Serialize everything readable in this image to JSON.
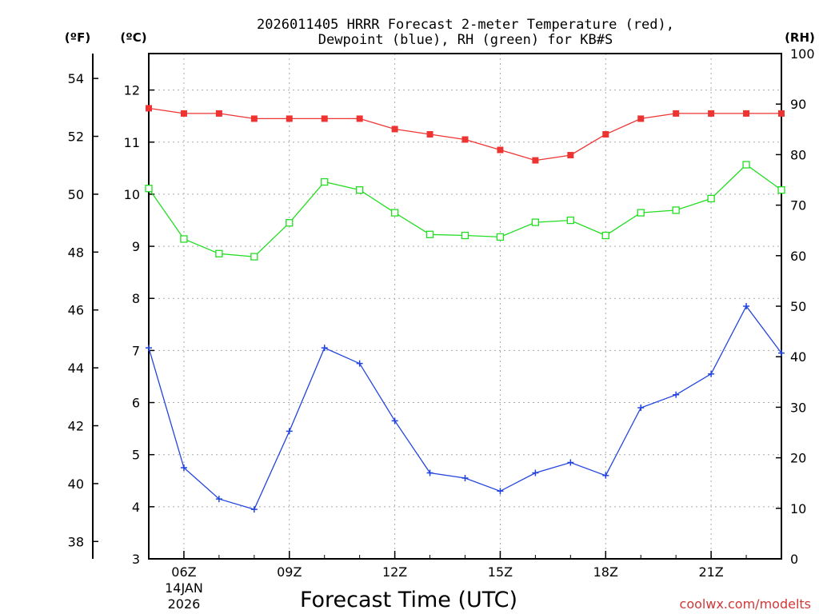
{
  "chart_data": {
    "type": "line",
    "title_line1": "2026011405 HRRR Forecast 2-meter Temperature (red),",
    "title_line2": "Dewpoint (blue), RH (green) for KB#S",
    "xlabel": "Forecast Time (UTC)",
    "watermark": "coolwx.com/modelts",
    "unit_f": "(ºF)",
    "unit_c": "(ºC)",
    "unit_rh": "(RH)",
    "x_hours": [
      5,
      6,
      7,
      8,
      9,
      10,
      11,
      12,
      13,
      14,
      15,
      16,
      17,
      18,
      19,
      20,
      21,
      22,
      23
    ],
    "x_ticks": [
      {
        "hour": 6,
        "label": "06Z",
        "date": "14JAN",
        "year": "2026"
      },
      {
        "hour": 9,
        "label": "09Z"
      },
      {
        "hour": 12,
        "label": "12Z"
      },
      {
        "hour": 15,
        "label": "15Z"
      },
      {
        "hour": 18,
        "label": "18Z"
      },
      {
        "hour": 21,
        "label": "21Z"
      }
    ],
    "xlim": [
      5,
      23
    ],
    "ylim_c": [
      3,
      12.7
    ],
    "ylim_rh": [
      0,
      100
    ],
    "yticks_c": [
      3,
      4,
      5,
      6,
      7,
      8,
      9,
      10,
      11,
      12
    ],
    "yticks_f": [
      38,
      40,
      42,
      44,
      46,
      48,
      50,
      52,
      54
    ],
    "yticks_rh": [
      0,
      10,
      20,
      30,
      40,
      50,
      60,
      70,
      80,
      90,
      100
    ],
    "colors": {
      "temperature": "#ee3333",
      "dewpoint": "#2244dd",
      "rh": "#22dd22",
      "grid": "#aaaaaa",
      "watermark": "#d03838",
      "axis": "#000000"
    },
    "series": [
      {
        "name": "Temperature",
        "unit": "C",
        "values": [
          11.65,
          11.55,
          11.55,
          11.45,
          11.45,
          11.45,
          11.45,
          11.25,
          11.15,
          11.05,
          10.85,
          10.65,
          10.75,
          11.15,
          11.45,
          11.55,
          11.55,
          11.55,
          11.55
        ]
      },
      {
        "name": "Dewpoint",
        "unit": "C",
        "values": [
          7.05,
          4.75,
          4.15,
          3.95,
          5.45,
          7.05,
          6.75,
          5.65,
          4.65,
          4.55,
          4.3,
          4.65,
          4.85,
          4.6,
          5.9,
          6.15,
          6.55,
          7.85,
          6.95
        ]
      },
      {
        "name": "RH",
        "unit": "%",
        "values": [
          73.3,
          63.3,
          60.4,
          59.8,
          66.5,
          74.6,
          73.0,
          68.5,
          64.2,
          64.0,
          63.7,
          66.6,
          67.0,
          64.0,
          68.5,
          69.0,
          71.3,
          78.0,
          73.0
        ]
      }
    ]
  }
}
